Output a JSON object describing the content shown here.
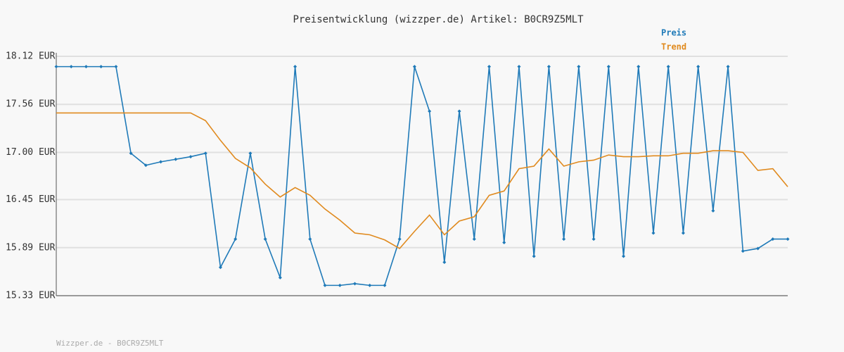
{
  "chart_data": {
    "type": "line",
    "title": "Preisentwicklung (wizzper.de) Artikel: B0CR9Z5MLT",
    "footer": "Wizzper.de - B0CR9Z5MLT",
    "categories": [
      null,
      null,
      null,
      null,
      null,
      null,
      null,
      null,
      null,
      null,
      null,
      null,
      null,
      null,
      null,
      null,
      null,
      null,
      null,
      null,
      null,
      null,
      null,
      null,
      null,
      null,
      null,
      null,
      null,
      null,
      null,
      null,
      null,
      null,
      null,
      null,
      null,
      null,
      null,
      null,
      null,
      null,
      null,
      null,
      null,
      null,
      null,
      null,
      null,
      null
    ],
    "series": [
      {
        "name": "Preis",
        "color": "#1f7ab8",
        "markers": true,
        "values": [
          18.0,
          18.0,
          18.0,
          18.0,
          18.0,
          16.99,
          16.85,
          16.89,
          16.92,
          16.95,
          16.99,
          15.66,
          15.99,
          16.99,
          15.99,
          15.54,
          18.0,
          15.99,
          15.45,
          15.45,
          15.47,
          15.45,
          15.45,
          15.99,
          18.0,
          17.48,
          15.72,
          17.48,
          15.99,
          18.0,
          15.95,
          18.0,
          15.79,
          18.0,
          15.99,
          18.0,
          15.99,
          18.0,
          15.79,
          18.0,
          16.06,
          18.0,
          16.06,
          18.0,
          16.32,
          18.0,
          15.85,
          15.88,
          15.99,
          15.99
        ]
      },
      {
        "name": "Trend",
        "color": "#e08a1e",
        "markers": false,
        "values": [
          17.46,
          17.46,
          17.46,
          17.46,
          17.46,
          17.46,
          17.46,
          17.46,
          17.46,
          17.46,
          17.37,
          17.14,
          16.93,
          16.82,
          16.63,
          16.48,
          16.59,
          16.5,
          16.34,
          16.21,
          16.06,
          16.04,
          15.98,
          15.88,
          16.08,
          16.27,
          16.04,
          16.2,
          16.25,
          16.5,
          16.55,
          16.81,
          16.84,
          17.04,
          16.84,
          16.89,
          16.91,
          16.97,
          16.95,
          16.95,
          16.96,
          16.96,
          16.99,
          16.99,
          17.02,
          17.02,
          17.0,
          16.79,
          16.81,
          16.6
        ]
      }
    ],
    "ylim": [
      15.33,
      18.12
    ],
    "yticks": [
      {
        "value": 15.33,
        "label": "15.33 EUR"
      },
      {
        "value": 15.89,
        "label": "15.89 EUR"
      },
      {
        "value": 16.45,
        "label": "16.45 EUR"
      },
      {
        "value": 17.0,
        "label": "17.00 EUR"
      },
      {
        "value": 17.56,
        "label": "17.56 EUR"
      },
      {
        "value": 18.12,
        "label": "18.12 EUR"
      }
    ],
    "grid": true,
    "legend": "top-right"
  }
}
